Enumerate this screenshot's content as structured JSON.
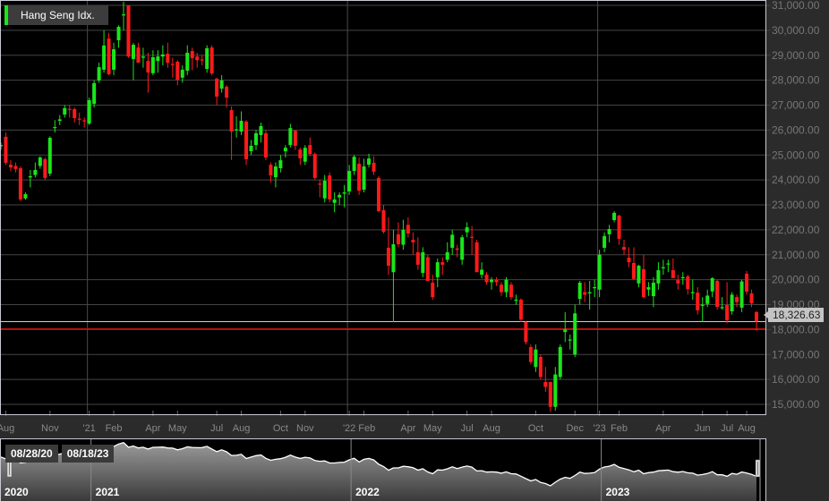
{
  "legend": {
    "label": "Hang Seng Idx.",
    "color": "#19e619"
  },
  "last_price_label": "18,326.63",
  "navigator": {
    "start_date": "08/28/20",
    "end_date": "08/18/23",
    "years": [
      "2020",
      "2021",
      "2022",
      "2023"
    ]
  },
  "colors": {
    "up": "#19e619",
    "down": "#ff1a1a",
    "background": "#000000",
    "panel": "#2b2b2b"
  },
  "chart_data": {
    "type": "candlestick",
    "title": "",
    "series_name": "Hang Seng Idx.",
    "interval": "weekly",
    "ylim": [
      14700,
      31200
    ],
    "y_ticks": [
      "15,000.00",
      "16,000.00",
      "17,000.00",
      "18,000.00",
      "19,000.00",
      "20,000.00",
      "21,000.00",
      "22,000.00",
      "23,000.00",
      "24,000.00",
      "25,000.00",
      "26,000.00",
      "27,000.00",
      "28,000.00",
      "29,000.00",
      "30,000.00",
      "31,000.00"
    ],
    "y_tick_values": [
      15000,
      16000,
      17000,
      18000,
      19000,
      20000,
      21000,
      22000,
      23000,
      24000,
      25000,
      26000,
      27000,
      28000,
      29000,
      30000,
      31000
    ],
    "x_ticks": [
      {
        "label": "Aug",
        "i": 1
      },
      {
        "label": "Nov",
        "i": 10
      },
      {
        "label": "'21",
        "i": 18
      },
      {
        "label": "Feb",
        "i": 23
      },
      {
        "label": "Apr",
        "i": 31
      },
      {
        "label": "May",
        "i": 36
      },
      {
        "label": "Jul",
        "i": 44
      },
      {
        "label": "Aug",
        "i": 49
      },
      {
        "label": "Oct",
        "i": 57
      },
      {
        "label": "Nov",
        "i": 62
      },
      {
        "label": "'22",
        "i": 71
      },
      {
        "label": "Feb",
        "i": 74
      },
      {
        "label": "Apr",
        "i": 83
      },
      {
        "label": "May",
        "i": 88
      },
      {
        "label": "Jul",
        "i": 95
      },
      {
        "label": "Aug",
        "i": 100
      },
      {
        "label": "Oct",
        "i": 109
      },
      {
        "label": "Dec",
        "i": 117
      },
      {
        "label": "'23",
        "i": 122
      },
      {
        "label": "Feb",
        "i": 126
      },
      {
        "label": "Apr",
        "i": 135
      },
      {
        "label": "Jun",
        "i": 143
      },
      {
        "label": "Jul",
        "i": 148
      },
      {
        "label": "Aug",
        "i": 152
      }
    ],
    "year_boundaries": [
      18,
      71,
      122
    ],
    "last_close": 18326.63,
    "ohlc": [
      [
        25350,
        25500,
        25200,
        25400
      ],
      [
        25730,
        25900,
        24600,
        24690
      ],
      [
        24610,
        24800,
        24350,
        24500
      ],
      [
        24560,
        24700,
        24300,
        24440
      ],
      [
        24470,
        24550,
        23150,
        23220
      ],
      [
        23260,
        23500,
        23200,
        23430
      ],
      [
        24100,
        24400,
        23700,
        24150
      ],
      [
        24200,
        24700,
        24100,
        24400
      ],
      [
        24560,
        24950,
        24450,
        24900
      ],
      [
        24830,
        24900,
        24000,
        24080
      ],
      [
        24250,
        25750,
        24150,
        25690
      ],
      [
        26100,
        26400,
        25900,
        26120
      ],
      [
        26370,
        26600,
        26200,
        26430
      ],
      [
        26620,
        27000,
        26500,
        26880
      ],
      [
        26850,
        27000,
        26500,
        26840
      ],
      [
        26840,
        26900,
        26300,
        26480
      ],
      [
        26460,
        26700,
        26200,
        26450
      ],
      [
        26390,
        26500,
        26100,
        26380
      ],
      [
        26260,
        27300,
        26200,
        27200
      ],
      [
        27050,
        28000,
        26900,
        27880
      ],
      [
        27990,
        28700,
        27900,
        28520
      ],
      [
        28420,
        30000,
        28300,
        29390
      ],
      [
        29670,
        29900,
        28200,
        28240
      ],
      [
        28420,
        29500,
        28200,
        29240
      ],
      [
        29600,
        30200,
        29300,
        30140
      ],
      [
        30600,
        31150,
        30000,
        30640
      ],
      [
        31000,
        31000,
        28900,
        28950
      ],
      [
        28850,
        29500,
        28000,
        29420
      ],
      [
        29310,
        29500,
        28700,
        28700
      ],
      [
        28900,
        29300,
        28500,
        28950
      ],
      [
        28770,
        29100,
        27500,
        28310
      ],
      [
        28280,
        29200,
        28200,
        28920
      ],
      [
        28770,
        29200,
        28300,
        28950
      ],
      [
        28950,
        29400,
        28600,
        29030
      ],
      [
        29060,
        29500,
        28500,
        28700
      ],
      [
        28650,
        28900,
        28100,
        28630
      ],
      [
        28740,
        28800,
        27800,
        28020
      ],
      [
        28100,
        28600,
        27900,
        28420
      ],
      [
        28380,
        29400,
        28200,
        29100
      ],
      [
        29170,
        29300,
        28400,
        28880
      ],
      [
        28950,
        29100,
        28500,
        28800
      ],
      [
        28830,
        29000,
        28600,
        28820
      ],
      [
        28450,
        29400,
        28300,
        29280
      ],
      [
        29310,
        29400,
        28200,
        28270
      ],
      [
        28060,
        28100,
        27000,
        27340
      ],
      [
        27660,
        28200,
        27500,
        27990
      ],
      [
        27740,
        27800,
        26900,
        27300
      ],
      [
        26800,
        26950,
        24800,
        25940
      ],
      [
        26000,
        26550,
        25700,
        26030
      ],
      [
        25940,
        26750,
        25800,
        26370
      ],
      [
        26340,
        26400,
        24600,
        24830
      ],
      [
        25150,
        25600,
        25000,
        25370
      ],
      [
        25400,
        26000,
        25200,
        25870
      ],
      [
        25800,
        26300,
        25500,
        26160
      ],
      [
        25870,
        26000,
        24800,
        24900
      ],
      [
        24610,
        24700,
        23900,
        24180
      ],
      [
        24110,
        24700,
        23700,
        24540
      ],
      [
        24470,
        25000,
        24300,
        24790
      ],
      [
        25150,
        25400,
        24900,
        25290
      ],
      [
        25400,
        26250,
        25300,
        26080
      ],
      [
        25980,
        26000,
        25200,
        25370
      ],
      [
        25220,
        25300,
        24600,
        24870
      ],
      [
        24730,
        25400,
        24600,
        25290
      ],
      [
        25400,
        25700,
        24950,
        25040
      ],
      [
        25040,
        25100,
        24000,
        24080
      ],
      [
        23850,
        24000,
        23300,
        23820
      ],
      [
        23260,
        24200,
        23100,
        23970
      ],
      [
        24180,
        24300,
        23100,
        23220
      ],
      [
        23080,
        23500,
        22700,
        23220
      ],
      [
        23300,
        23500,
        23000,
        23400
      ],
      [
        23450,
        23800,
        22900,
        23500
      ],
      [
        23540,
        24600,
        23400,
        24360
      ],
      [
        24360,
        25000,
        24200,
        24930
      ],
      [
        24650,
        24900,
        23400,
        23570
      ],
      [
        23610,
        24850,
        23500,
        24540
      ],
      [
        24610,
        25050,
        24500,
        24860
      ],
      [
        24690,
        24950,
        24200,
        24330
      ],
      [
        24080,
        24150,
        22700,
        22750
      ],
      [
        22790,
        23000,
        21850,
        21920
      ],
      [
        21280,
        22500,
        20200,
        20560
      ],
      [
        20300,
        22000,
        18300,
        21420
      ],
      [
        21820,
        22300,
        21300,
        21420
      ],
      [
        21400,
        22400,
        21200,
        22000
      ],
      [
        22200,
        22500,
        21700,
        21850
      ],
      [
        21600,
        21900,
        21000,
        21500
      ],
      [
        21100,
        21700,
        20400,
        20600
      ],
      [
        20270,
        21300,
        20100,
        21100
      ],
      [
        20900,
        21000,
        19950,
        19950
      ],
      [
        19880,
        20200,
        19200,
        19300
      ],
      [
        20100,
        20850,
        19700,
        20700
      ],
      [
        20700,
        20900,
        20200,
        20600
      ],
      [
        20800,
        21500,
        20700,
        21100
      ],
      [
        21280,
        22000,
        21000,
        21800
      ],
      [
        21250,
        21400,
        20900,
        21200
      ],
      [
        20800,
        21800,
        20600,
        21700
      ],
      [
        21900,
        22300,
        21700,
        22100
      ],
      [
        21720,
        22150,
        21000,
        21700
      ],
      [
        21500,
        21600,
        20300,
        20300
      ],
      [
        20200,
        20700,
        20050,
        20400
      ],
      [
        20200,
        20300,
        19800,
        19900
      ],
      [
        19900,
        20100,
        19600,
        20000
      ],
      [
        20000,
        20100,
        19750,
        19900
      ],
      [
        19800,
        19900,
        19350,
        19500
      ],
      [
        19500,
        20100,
        19300,
        20000
      ],
      [
        19800,
        19900,
        19200,
        19300
      ],
      [
        19200,
        19400,
        19000,
        19200
      ],
      [
        19200,
        19250,
        18300,
        18400
      ],
      [
        18300,
        18350,
        17400,
        17500
      ],
      [
        17300,
        17400,
        16600,
        16700
      ],
      [
        16500,
        17400,
        16300,
        17200
      ],
      [
        16900,
        17000,
        16000,
        16100
      ],
      [
        15900,
        16500,
        15500,
        15700
      ],
      [
        15900,
        15900,
        14700,
        14900
      ],
      [
        14900,
        16500,
        14750,
        16200
      ],
      [
        16100,
        17400,
        16000,
        17300
      ],
      [
        17900,
        18700,
        17500,
        18000
      ],
      [
        17600,
        17800,
        17200,
        17600
      ],
      [
        17000,
        19000,
        16900,
        18650
      ],
      [
        19230,
        19950,
        19000,
        19880
      ],
      [
        19500,
        19900,
        19100,
        19400
      ],
      [
        19450,
        19950,
        18800,
        19500
      ],
      [
        19700,
        20000,
        19300,
        19700
      ],
      [
        19600,
        21200,
        19300,
        21000
      ],
      [
        21280,
        21900,
        21100,
        21750
      ],
      [
        21820,
        22200,
        21500,
        22030
      ],
      [
        22390,
        22750,
        22300,
        22680
      ],
      [
        22570,
        22600,
        21400,
        21640
      ],
      [
        21310,
        21600,
        21000,
        21200
      ],
      [
        20880,
        21300,
        20500,
        20700
      ],
      [
        20670,
        21300,
        20000,
        20030
      ],
      [
        19850,
        20600,
        19700,
        20560
      ],
      [
        20420,
        21000,
        19250,
        19300
      ],
      [
        19600,
        19900,
        19350,
        19700
      ],
      [
        19340,
        20100,
        18900,
        19880
      ],
      [
        19850,
        20700,
        19600,
        20380
      ],
      [
        20500,
        20800,
        20200,
        20500
      ],
      [
        20650,
        20800,
        20300,
        20650
      ],
      [
        20380,
        20850,
        20200,
        20060
      ],
      [
        19980,
        20200,
        19600,
        19850
      ],
      [
        20100,
        20300,
        19800,
        20100
      ],
      [
        20130,
        20200,
        19400,
        19620
      ],
      [
        19500,
        20000,
        19200,
        19500
      ],
      [
        19480,
        19700,
        18600,
        18770
      ],
      [
        18950,
        19300,
        18300,
        19000
      ],
      [
        19030,
        19600,
        18900,
        19360
      ],
      [
        19530,
        20100,
        19300,
        20060
      ],
      [
        19950,
        20000,
        18800,
        18910
      ],
      [
        18900,
        19300,
        18800,
        18900
      ],
      [
        18980,
        19900,
        18250,
        18370
      ],
      [
        18730,
        19500,
        18600,
        19400
      ],
      [
        19300,
        19400,
        18900,
        19100
      ],
      [
        18880,
        20000,
        18700,
        19930
      ],
      [
        20240,
        20350,
        19400,
        19520
      ],
      [
        19450,
        19600,
        18900,
        19050
      ],
      [
        18700,
        18750,
        17950,
        18326.63
      ]
    ]
  }
}
